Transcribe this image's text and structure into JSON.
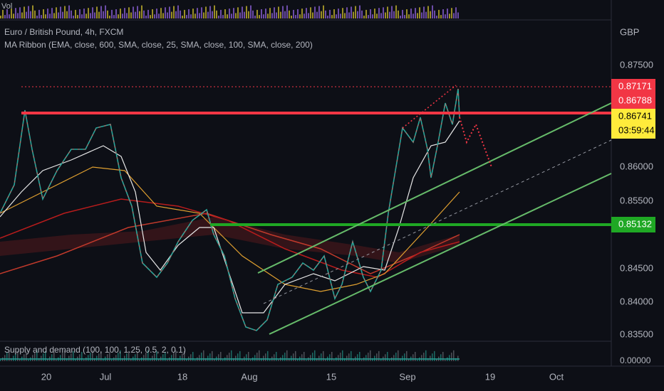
{
  "header": {
    "volume_label": "Vol",
    "symbol": "Euro / British Pound, 4h, FXCM",
    "indicator": "MA Ribbon (EMA, close, 600, SMA, close, 25, SMA, close, 100, SMA, close, 200)"
  },
  "price_axis": {
    "currency": "GBP",
    "ticks": [
      "0.87500",
      "0.86000",
      "0.85500",
      "0.84500",
      "0.84000",
      "0.83500"
    ]
  },
  "price_tags": {
    "high": "0.87171",
    "level_top": "0.86788",
    "last": "0.86741",
    "countdown": "03:59:44",
    "level_bottom": "0.85132"
  },
  "lower_pane": {
    "title": "Supply and demand (100, 100, 1.25, 0.5, 2, 0.1)",
    "tick": "0.00000"
  },
  "time_axis": [
    "20",
    "Jul",
    "18",
    "Aug",
    "15",
    "Sep",
    "19",
    "Oct"
  ]
}
